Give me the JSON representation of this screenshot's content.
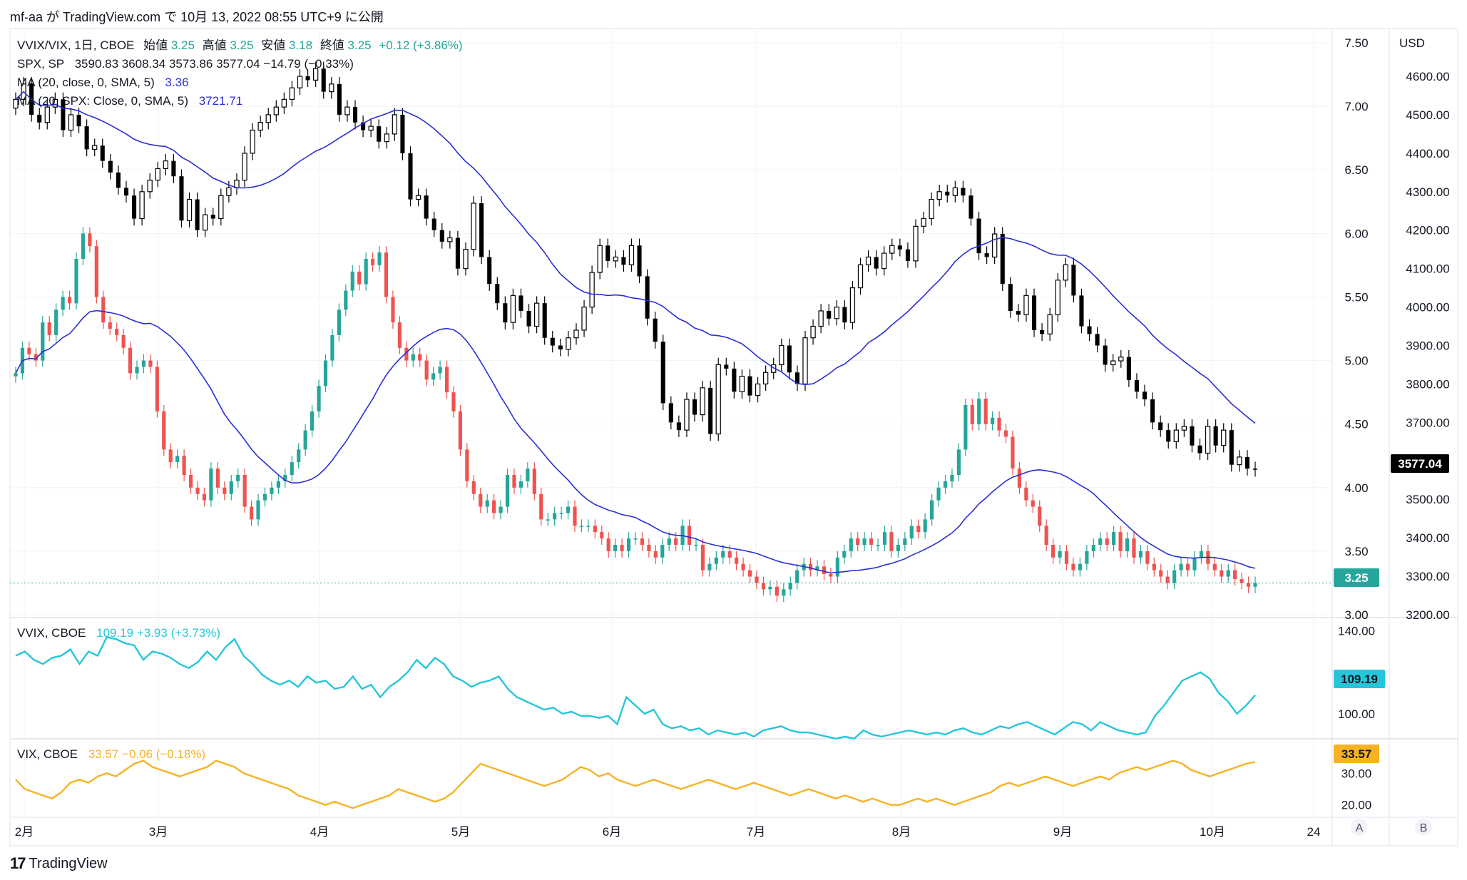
{
  "header": {
    "text": "mf-aa が TradingView.com で 10月 13, 2022 08:55 UTC+9 に公開"
  },
  "footer": {
    "logo_mark": "17",
    "logo_text": "TradingView"
  },
  "legend": {
    "main_symbol": "VVIX/VIX, 1日, CBOE",
    "ohlc_labels": [
      "始値",
      "高値",
      "安値",
      "終値"
    ],
    "ohlc_values": [
      "3.25",
      "3.25",
      "3.18",
      "3.25"
    ],
    "change": "+0.12 (+3.86%)",
    "spx_line": "SPX, SP",
    "spx_values": "3590.83  3608.34  3573.86  3577.04  −14.79 (−0.33%)",
    "ma1_label": "MA (20, close, 0, SMA, 5)",
    "ma1_value": "3.36",
    "ma2_label": "MA (20, SPX: Close, 0, SMA, 5)",
    "ma2_value": "3721.71",
    "vvix_label": "VVIX, CBOE",
    "vvix_value": "109.19  +3.93 (+3.73%)",
    "vix_label": "VIX, CBOE",
    "vix_value": "33.57  −0.06 (−0.18%)"
  },
  "colors": {
    "up": "#26a69a",
    "down": "#ef5350",
    "spx_candle": "#000000",
    "ma": "#2a2ed6",
    "vvix": "#26c6da",
    "vix": "#f5b324",
    "grid": "#f0f3fa",
    "axis_text": "#131722",
    "dotted": "#26a69a"
  },
  "axis": {
    "ratio_ticks": [
      "7.50",
      "7.00",
      "6.50",
      "6.00",
      "5.50",
      "5.00",
      "4.50",
      "4.00",
      "3.50",
      "3.00"
    ],
    "spx_ticks": [
      "4600.00",
      "4500.00",
      "4400.00",
      "4300.00",
      "4200.00",
      "4100.00",
      "4000.00",
      "3900.00",
      "3800.00",
      "3700.00",
      "3600.00",
      "3500.00",
      "3400.00",
      "3300.00",
      "3200.00"
    ],
    "currency": "USD",
    "vvix_ticks": [
      "140.00",
      "100.00"
    ],
    "vix_ticks": [
      "30.00",
      "20.00"
    ],
    "time_labels": [
      "2月",
      "3月",
      "4月",
      "5月",
      "6月",
      "7月",
      "8月",
      "9月",
      "10月",
      "24"
    ],
    "scale_buttons": [
      "A",
      "B"
    ]
  },
  "badges": {
    "spx": "3577.04",
    "ratio": "3.25",
    "vvix": "109.19",
    "vix": "33.57"
  },
  "chart_data": [
    {
      "type": "candlestick",
      "name": "VVIX/VIX",
      "x_start": "2022-02-01",
      "x_end": "2022-10-13",
      "ylim": [
        3.0,
        7.5
      ],
      "close": [
        4.9,
        5.1,
        5.05,
        5.0,
        5.3,
        5.2,
        5.4,
        5.5,
        5.45,
        5.8,
        6.0,
        5.9,
        5.5,
        5.3,
        5.25,
        5.2,
        5.1,
        4.9,
        4.95,
        5.0,
        4.95,
        4.6,
        4.3,
        4.2,
        4.25,
        4.1,
        4.0,
        3.95,
        3.9,
        4.15,
        4.0,
        3.95,
        4.05,
        4.1,
        3.85,
        3.75,
        3.9,
        3.95,
        4.0,
        4.05,
        4.1,
        4.2,
        4.3,
        4.45,
        4.6,
        4.8,
        5.0,
        5.2,
        5.4,
        5.55,
        5.7,
        5.6,
        5.8,
        5.75,
        5.85,
        5.5,
        5.3,
        5.1,
        5.0,
        5.05,
        5.0,
        4.85,
        4.9,
        4.95,
        4.75,
        4.6,
        4.3,
        4.05,
        3.95,
        3.85,
        3.9,
        3.8,
        3.85,
        4.1,
        4.0,
        4.05,
        4.15,
        3.95,
        3.75,
        3.75,
        3.8,
        3.8,
        3.85,
        3.7,
        3.7,
        3.7,
        3.65,
        3.6,
        3.5,
        3.55,
        3.5,
        3.6,
        3.6,
        3.55,
        3.5,
        3.45,
        3.55,
        3.6,
        3.55,
        3.7,
        3.55,
        3.55,
        3.35,
        3.4,
        3.45,
        3.5,
        3.45,
        3.4,
        3.35,
        3.3,
        3.25,
        3.2,
        3.22,
        3.15,
        3.2,
        3.25,
        3.35,
        3.4,
        3.35,
        3.38,
        3.32,
        3.3,
        3.45,
        3.5,
        3.6,
        3.55,
        3.6,
        3.55,
        3.55,
        3.65,
        3.5,
        3.55,
        3.6,
        3.7,
        3.65,
        3.75,
        3.9,
        4.0,
        4.05,
        4.1,
        4.3,
        4.65,
        4.5,
        4.7,
        4.5,
        4.55,
        4.45,
        4.4,
        4.15,
        4.0,
        3.9,
        3.85,
        3.7,
        3.55,
        3.45,
        3.5,
        3.4,
        3.35,
        3.4,
        3.5,
        3.55,
        3.6,
        3.55,
        3.65,
        3.5,
        3.6,
        3.45,
        3.5,
        3.4,
        3.35,
        3.3,
        3.25,
        3.35,
        3.4,
        3.35,
        3.45,
        3.5,
        3.4,
        3.35,
        3.3,
        3.35,
        3.28,
        3.25,
        3.22,
        3.25
      ]
    },
    {
      "type": "candlestick",
      "name": "SPX",
      "x_start": "2022-02-01",
      "x_end": "2022-10-13",
      "ylim": [
        3200,
        4650
      ],
      "close": [
        4540,
        4580,
        4500,
        4480,
        4520,
        4540,
        4460,
        4500,
        4470,
        4410,
        4420,
        4380,
        4350,
        4310,
        4290,
        4230,
        4300,
        4330,
        4360,
        4380,
        4340,
        4225,
        4280,
        4200,
        4240,
        4230,
        4290,
        4310,
        4330,
        4400,
        4460,
        4480,
        4500,
        4520,
        4540,
        4570,
        4600,
        4590,
        4620,
        4560,
        4580,
        4500,
        4520,
        4480,
        4460,
        4470,
        4430,
        4450,
        4500,
        4400,
        4280,
        4290,
        4230,
        4200,
        4170,
        4180,
        4100,
        4150,
        4270,
        4130,
        4060,
        4010,
        3960,
        4030,
        3990,
        3950,
        4010,
        3920,
        3900,
        3890,
        3920,
        3940,
        4000,
        4090,
        4160,
        4120,
        4130,
        4110,
        4160,
        4080,
        3970,
        3910,
        3750,
        3700,
        3680,
        3760,
        3720,
        3790,
        3670,
        3850,
        3840,
        3780,
        3820,
        3770,
        3800,
        3830,
        3850,
        3900,
        3830,
        3800,
        3920,
        3950,
        3990,
        3970,
        4000,
        3960,
        4050,
        4110,
        4130,
        4100,
        4140,
        4160,
        4150,
        4120,
        4210,
        4230,
        4280,
        4300,
        4290,
        4310,
        4290,
        4230,
        4140,
        4130,
        4190,
        4060,
        3990,
        3980,
        4030,
        3940,
        3930,
        3980,
        4070,
        4110,
        4030,
        3950,
        3930,
        3900,
        3850,
        3860,
        3870,
        3810,
        3780,
        3760,
        3700,
        3680,
        3650,
        3680,
        3690,
        3640,
        3620,
        3690,
        3640,
        3680,
        3590,
        3610,
        3580,
        3577
      ]
    },
    {
      "type": "line",
      "name": "VVIX",
      "ylim": [
        90,
        145
      ],
      "values": [
        128,
        130,
        126,
        124,
        127,
        128,
        131,
        124,
        130,
        128,
        137,
        136,
        134,
        133,
        126,
        130,
        129,
        127,
        124,
        122,
        125,
        130,
        126,
        132,
        136,
        128,
        124,
        119,
        116,
        114,
        116,
        113,
        118,
        115,
        116,
        112,
        113,
        118,
        112,
        114,
        108,
        113,
        116,
        120,
        126,
        122,
        127,
        124,
        118,
        116,
        113,
        115,
        116,
        118,
        112,
        108,
        106,
        104,
        102,
        103,
        100,
        101,
        99,
        99,
        98,
        99,
        95,
        108,
        104,
        100,
        102,
        95,
        93,
        94,
        92,
        93,
        90,
        92,
        91,
        90,
        91,
        89,
        92,
        93,
        94,
        92,
        91,
        91,
        90,
        89,
        88,
        89,
        88,
        92,
        90,
        89,
        90,
        91,
        92,
        91,
        90,
        91,
        90,
        92,
        93,
        91,
        90,
        92,
        94,
        93,
        95,
        96,
        94,
        92,
        90,
        93,
        96,
        95,
        92,
        96,
        94,
        92,
        91,
        90,
        91,
        99,
        104,
        110,
        116,
        118,
        120,
        117,
        110,
        106,
        100,
        104,
        109
      ]
    },
    {
      "type": "line",
      "name": "VIX",
      "ylim": [
        17,
        40
      ],
      "values": [
        28,
        25,
        24,
        23,
        22,
        24,
        27,
        28,
        27,
        29,
        30,
        29,
        31,
        33,
        34,
        32,
        31,
        30,
        29,
        30,
        31,
        32,
        34,
        33,
        32,
        30,
        29,
        28,
        27,
        26,
        25,
        23,
        22,
        21,
        20,
        21,
        20,
        19,
        20,
        21,
        22,
        23,
        25,
        24,
        23,
        22,
        21,
        22,
        24,
        27,
        30,
        33,
        32,
        31,
        30,
        29,
        28,
        27,
        26,
        27,
        28,
        30,
        32,
        31,
        29,
        30,
        28,
        27,
        26,
        27,
        28,
        27,
        26,
        25,
        26,
        27,
        28,
        27,
        26,
        25,
        26,
        27,
        26,
        25,
        24,
        23,
        24,
        25,
        24,
        23,
        22,
        23,
        22,
        21,
        22,
        21,
        20,
        20,
        21,
        22,
        21,
        22,
        21,
        20,
        21,
        22,
        23,
        24,
        26,
        27,
        26,
        27,
        28,
        29,
        28,
        27,
        26,
        27,
        28,
        29,
        28,
        30,
        31,
        32,
        31,
        32,
        33,
        34,
        33,
        31,
        30,
        29,
        30,
        31,
        32,
        33,
        33.57
      ]
    }
  ]
}
